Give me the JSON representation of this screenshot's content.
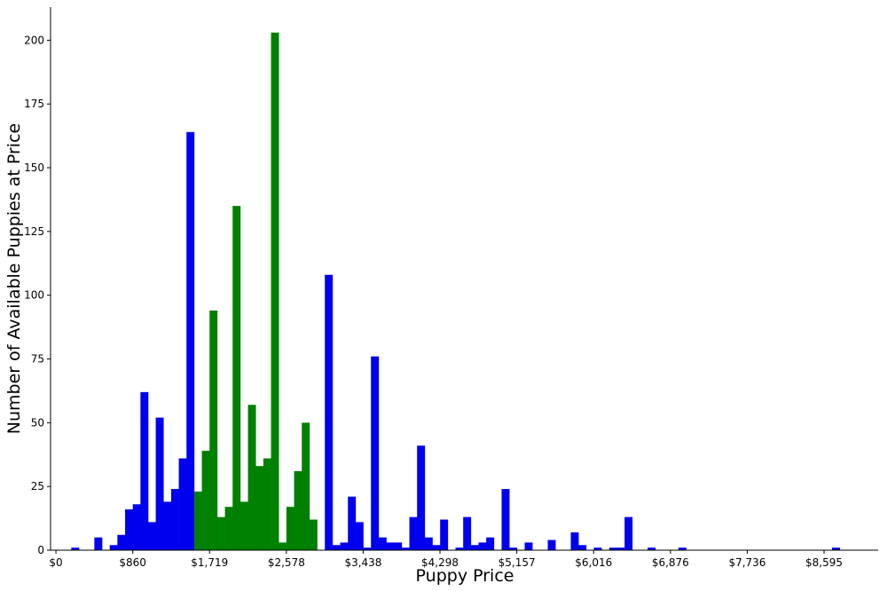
{
  "chart_data": {
    "type": "bar",
    "title": "",
    "xlabel": "Puppy Price",
    "ylabel": "Number of Available Puppies at Price",
    "xlim": [
      -60,
      9200
    ],
    "ylim": [
      0,
      213
    ],
    "bin_width": 85.95,
    "x_ticks": [
      0,
      859.5,
      1719,
      2578.5,
      3438,
      4297.5,
      5157,
      6016.5,
      6876,
      7735.5,
      8595
    ],
    "x_tick_labels": [
      "$0",
      "$860",
      "$1,719",
      "$2,578",
      "$3,438",
      "$4,298",
      "$5,157",
      "$6,016",
      "$6,876",
      "$7,736",
      "$8,595"
    ],
    "y_ticks": [
      0,
      25,
      50,
      75,
      100,
      125,
      150,
      175,
      200
    ],
    "y_tick_labels": [
      "0",
      "25",
      "50",
      "75",
      "100",
      "125",
      "150",
      "175",
      "200"
    ],
    "grid": false,
    "colors": {
      "outside": "#0000ee",
      "middle": "#008000"
    },
    "series": [
      {
        "color": "#0000ee",
        "points": [
          [
            215,
            1
          ],
          [
            473,
            5
          ],
          [
            645,
            2
          ],
          [
            731,
            6
          ],
          [
            817,
            16
          ],
          [
            903,
            18
          ],
          [
            989,
            62
          ],
          [
            1075,
            11
          ],
          [
            1160,
            52
          ],
          [
            1246,
            19
          ],
          [
            1332,
            24
          ],
          [
            1418,
            36
          ],
          [
            1504,
            164
          ],
          [
            3052,
            108
          ],
          [
            3138,
            2
          ],
          [
            3224,
            3
          ],
          [
            3310,
            21
          ],
          [
            3396,
            11
          ],
          [
            3482,
            1
          ],
          [
            3568,
            76
          ],
          [
            3654,
            5
          ],
          [
            3740,
            3
          ],
          [
            3826,
            3
          ],
          [
            3912,
            1
          ],
          [
            3998,
            13
          ],
          [
            4084,
            41
          ],
          [
            4170,
            5
          ],
          [
            4256,
            2
          ],
          [
            4342,
            12
          ],
          [
            4514,
            1
          ],
          [
            4600,
            13
          ],
          [
            4686,
            2
          ],
          [
            4772,
            3
          ],
          [
            4858,
            5
          ],
          [
            5030,
            24
          ],
          [
            5116,
            1
          ],
          [
            5288,
            3
          ],
          [
            5546,
            4
          ],
          [
            5804,
            7
          ],
          [
            5890,
            2
          ],
          [
            6062,
            1
          ],
          [
            6234,
            1
          ],
          [
            6320,
            1
          ],
          [
            6406,
            13
          ],
          [
            6664,
            1
          ],
          [
            7008,
            1
          ],
          [
            8727,
            1
          ]
        ]
      },
      {
        "color": "#008000",
        "points": [
          [
            1590,
            23
          ],
          [
            1676,
            39
          ],
          [
            1762,
            94
          ],
          [
            1848,
            13
          ],
          [
            1934,
            17
          ],
          [
            2020,
            135
          ],
          [
            2106,
            19
          ],
          [
            2192,
            57
          ],
          [
            2278,
            33
          ],
          [
            2364,
            36
          ],
          [
            2450,
            203
          ],
          [
            2536,
            3
          ],
          [
            2622,
            17
          ],
          [
            2708,
            31
          ],
          [
            2794,
            50
          ],
          [
            2880,
            12
          ]
        ]
      }
    ]
  }
}
